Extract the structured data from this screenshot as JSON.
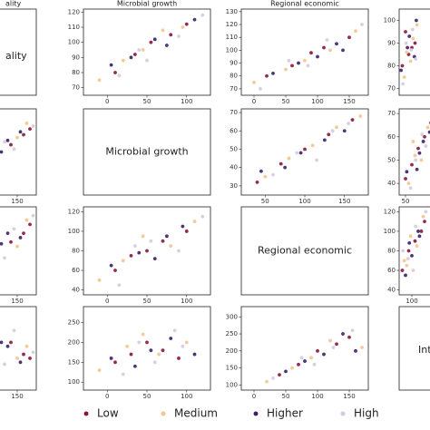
{
  "chart_data": [
    {
      "type": "label",
      "title": "ality",
      "text": "ality"
    },
    {
      "type": "scatter",
      "title": "Microbial growth",
      "xlim": [
        -30,
        130
      ],
      "ylim": [
        65,
        122
      ],
      "xticks": [
        0,
        50,
        100
      ],
      "yticks": [
        70,
        80,
        90,
        100,
        110,
        120
      ],
      "series": [
        {
          "name": "Low",
          "x": [
            10,
            35,
            55,
            80,
            100
          ],
          "values": [
            80,
            92,
            100,
            105,
            112
          ]
        },
        {
          "name": "Medium",
          "x": [
            -10,
            20,
            45,
            70,
            95
          ],
          "values": [
            75,
            88,
            95,
            108,
            110
          ]
        },
        {
          "name": "Higher",
          "x": [
            5,
            30,
            60,
            75,
            110
          ],
          "values": [
            85,
            90,
            102,
            98,
            115
          ]
        },
        {
          "name": "High",
          "x": [
            15,
            40,
            50,
            90,
            120
          ],
          "values": [
            78,
            95,
            88,
            104,
            118
          ]
        }
      ]
    },
    {
      "type": "scatter",
      "title": "Regional economic",
      "xlim": [
        -20,
        180
      ],
      "ylim": [
        65,
        132
      ],
      "xticks": [
        0,
        50,
        100,
        150
      ],
      "yticks": [
        70,
        80,
        90,
        100,
        110,
        120,
        130
      ],
      "series": [
        {
          "name": "Low",
          "x": [
            20,
            60,
            90,
            110,
            150
          ],
          "values": [
            80,
            88,
            98,
            102,
            110
          ]
        },
        {
          "name": "Medium",
          "x": [
            0,
            50,
            80,
            120,
            160
          ],
          "values": [
            75,
            85,
            92,
            100,
            115
          ]
        },
        {
          "name": "Higher",
          "x": [
            30,
            70,
            100,
            130,
            140
          ],
          "values": [
            82,
            90,
            95,
            105,
            100
          ]
        },
        {
          "name": "High",
          "x": [
            10,
            55,
            85,
            115,
            170
          ],
          "values": [
            70,
            92,
            88,
            108,
            120
          ]
        }
      ]
    },
    {
      "type": "scatter",
      "xlim": [
        0,
        200
      ],
      "ylim": [
        67,
        105
      ],
      "xticks": [],
      "yticks": [
        70,
        80,
        90,
        100
      ],
      "series": [
        {
          "name": "Low",
          "x": [
            5,
            15,
            25,
            10,
            20
          ],
          "values": [
            80,
            85,
            90,
            95,
            88
          ]
        },
        {
          "name": "Medium",
          "x": [
            8,
            18,
            22,
            12,
            28
          ],
          "values": [
            75,
            82,
            92,
            86,
            98
          ]
        },
        {
          "name": "Higher",
          "x": [
            3,
            13,
            24,
            16,
            27
          ],
          "values": [
            78,
            88,
            84,
            93,
            100
          ]
        },
        {
          "name": "High",
          "x": [
            6,
            11,
            21,
            26,
            19
          ],
          "values": [
            72,
            90,
            96,
            83,
            87
          ]
        }
      ]
    },
    {
      "type": "scatter",
      "xlim": [
        -20,
        180
      ],
      "ylim": [
        20,
        80
      ],
      "xticks": [
        150
      ],
      "yticks": [],
      "series": [
        {
          "name": "Low",
          "x": [
            80,
            110,
            140,
            160,
            170
          ],
          "values": [
            40,
            48,
            55,
            62,
            66
          ]
        },
        {
          "name": "Medium",
          "x": [
            90,
            120,
            150,
            165,
            100
          ],
          "values": [
            45,
            50,
            60,
            70,
            42
          ]
        },
        {
          "name": "Higher",
          "x": [
            85,
            115,
            135,
            155,
            125
          ],
          "values": [
            38,
            52,
            58,
            64,
            50
          ]
        },
        {
          "name": "High",
          "x": [
            95,
            105,
            145,
            175,
            130
          ],
          "values": [
            50,
            44,
            52,
            68,
            57
          ]
        }
      ]
    },
    {
      "type": "label",
      "text": "Microbial growth"
    },
    {
      "type": "scatter",
      "xlim": [
        20,
        180
      ],
      "ylim": [
        25,
        72
      ],
      "xticks": [
        50,
        100,
        150
      ],
      "yticks": [
        30,
        40,
        50,
        60,
        70
      ],
      "series": [
        {
          "name": "Low",
          "x": [
            40,
            70,
            100,
            130,
            160
          ],
          "values": [
            32,
            42,
            50,
            58,
            66
          ]
        },
        {
          "name": "Medium",
          "x": [
            50,
            80,
            110,
            140,
            170
          ],
          "values": [
            35,
            45,
            52,
            62,
            68
          ]
        },
        {
          "name": "Higher",
          "x": [
            45,
            75,
            95,
            125,
            150
          ],
          "values": [
            38,
            40,
            48,
            55,
            60
          ]
        },
        {
          "name": "High",
          "x": [
            60,
            90,
            115,
            135,
            155
          ],
          "values": [
            36,
            48,
            44,
            60,
            64
          ]
        }
      ]
    },
    {
      "type": "scatter",
      "xlim": [
        40,
        240
      ],
      "ylim": [
        35,
        72
      ],
      "xticks": [
        50
      ],
      "yticks": [
        40,
        50,
        60,
        70
      ],
      "series": [
        {
          "name": "Low",
          "x": [
            50,
            60,
            70,
            80,
            90
          ],
          "values": [
            42,
            48,
            55,
            60,
            66
          ]
        },
        {
          "name": "Medium",
          "x": [
            55,
            65,
            75,
            85,
            62
          ],
          "values": [
            40,
            52,
            50,
            64,
            58
          ]
        },
        {
          "name": "Higher",
          "x": [
            52,
            68,
            78,
            88,
            72
          ],
          "values": [
            45,
            46,
            58,
            62,
            53
          ]
        },
        {
          "name": "High",
          "x": [
            58,
            66,
            82,
            92,
            76
          ],
          "values": [
            38,
            50,
            56,
            68,
            61
          ]
        }
      ]
    },
    {
      "type": "scatter",
      "xlim": [
        -20,
        180
      ],
      "ylim": [
        30,
        130
      ],
      "xticks": [
        150
      ],
      "yticks": [],
      "series": [
        {
          "name": "Low",
          "x": [
            80,
            110,
            140,
            160,
            170
          ],
          "values": [
            60,
            80,
            90,
            100,
            110
          ]
        },
        {
          "name": "Medium",
          "x": [
            90,
            120,
            150,
            165,
            100
          ],
          "values": [
            70,
            95,
            85,
            115,
            65
          ]
        },
        {
          "name": "Higher",
          "x": [
            85,
            115,
            135,
            155,
            125
          ],
          "values": [
            55,
            75,
            100,
            95,
            88
          ]
        },
        {
          "name": "High",
          "x": [
            95,
            105,
            145,
            175,
            130
          ],
          "values": [
            80,
            60,
            105,
            120,
            72
          ]
        }
      ]
    },
    {
      "type": "scatter",
      "xlim": [
        -30,
        130
      ],
      "ylim": [
        35,
        125
      ],
      "xticks": [
        0,
        50,
        100
      ],
      "yticks": [
        40,
        60,
        80,
        100,
        120
      ],
      "series": [
        {
          "name": "Low",
          "x": [
            10,
            30,
            50,
            70,
            100
          ],
          "values": [
            60,
            75,
            80,
            90,
            100
          ]
        },
        {
          "name": "Medium",
          "x": [
            -10,
            20,
            45,
            80,
            110
          ],
          "values": [
            50,
            70,
            95,
            85,
            110
          ]
        },
        {
          "name": "Higher",
          "x": [
            5,
            40,
            60,
            75,
            95
          ],
          "values": [
            65,
            78,
            72,
            95,
            105
          ]
        },
        {
          "name": "High",
          "x": [
            15,
            35,
            55,
            90,
            120
          ],
          "values": [
            45,
            85,
            90,
            80,
            115
          ]
        }
      ]
    },
    {
      "type": "label",
      "text": "Regional economic"
    },
    {
      "type": "scatter",
      "xlim": [
        80,
        280
      ],
      "ylim": [
        35,
        125
      ],
      "xticks": [
        100
      ],
      "yticks": [
        40,
        60,
        80,
        100,
        120
      ],
      "series": [
        {
          "name": "Low",
          "x": [
            85,
            95,
            105,
            115,
            120
          ],
          "values": [
            60,
            80,
            90,
            100,
            110
          ]
        },
        {
          "name": "Medium",
          "x": [
            88,
            98,
            108,
            118,
            92
          ],
          "values": [
            70,
            95,
            85,
            115,
            65
          ]
        },
        {
          "name": "Higher",
          "x": [
            90,
            100,
            110,
            112,
            96
          ],
          "values": [
            55,
            75,
            100,
            95,
            88
          ]
        },
        {
          "name": "High",
          "x": [
            86,
            102,
            106,
            122,
            94
          ],
          "values": [
            80,
            60,
            105,
            120,
            72
          ]
        }
      ]
    },
    {
      "type": "scatter",
      "xlim": [
        -20,
        180
      ],
      "ylim": [
        80,
        290
      ],
      "xticks": [
        150
      ],
      "yticks": [],
      "series": [
        {
          "name": "Low",
          "x": [
            80,
            110,
            140,
            160,
            170
          ],
          "values": [
            150,
            180,
            200,
            170,
            160
          ]
        },
        {
          "name": "Medium",
          "x": [
            90,
            120,
            150,
            165,
            100
          ],
          "values": [
            130,
            210,
            160,
            190,
            220
          ]
        },
        {
          "name": "Higher",
          "x": [
            85,
            115,
            135,
            155,
            125
          ],
          "values": [
            170,
            140,
            190,
            150,
            200
          ]
        },
        {
          "name": "High",
          "x": [
            95,
            105,
            145,
            175,
            130
          ],
          "values": [
            120,
            190,
            230,
            175,
            145
          ]
        }
      ]
    },
    {
      "type": "scatter",
      "xlim": [
        -30,
        130
      ],
      "ylim": [
        80,
        290
      ],
      "xticks": [
        0,
        50,
        100
      ],
      "yticks": [
        100,
        150,
        200,
        250
      ],
      "series": [
        {
          "name": "Low",
          "x": [
            10,
            30,
            50,
            70,
            90
          ],
          "values": [
            150,
            170,
            200,
            180,
            160
          ]
        },
        {
          "name": "Medium",
          "x": [
            -10,
            25,
            45,
            65,
            100
          ],
          "values": [
            130,
            190,
            220,
            170,
            200
          ]
        },
        {
          "name": "Higher",
          "x": [
            5,
            35,
            55,
            80,
            110
          ],
          "values": [
            160,
            140,
            180,
            210,
            170
          ]
        },
        {
          "name": "High",
          "x": [
            20,
            40,
            60,
            85,
            95
          ],
          "values": [
            120,
            200,
            150,
            230,
            190
          ]
        }
      ]
    },
    {
      "type": "scatter",
      "xlim": [
        -20,
        180
      ],
      "ylim": [
        85,
        330
      ],
      "xticks": [
        0,
        50,
        100,
        150
      ],
      "yticks": [
        100,
        150,
        200,
        250,
        300
      ],
      "series": [
        {
          "name": "Low",
          "x": [
            40,
            70,
            100,
            130,
            150
          ],
          "values": [
            130,
            160,
            200,
            220,
            240
          ]
        },
        {
          "name": "Medium",
          "x": [
            20,
            60,
            90,
            120,
            170
          ],
          "values": [
            110,
            150,
            180,
            230,
            210
          ]
        },
        {
          "name": "Higher",
          "x": [
            50,
            80,
            110,
            140,
            160
          ],
          "values": [
            140,
            170,
            190,
            250,
            200
          ]
        },
        {
          "name": "High",
          "x": [
            30,
            75,
            95,
            125,
            155
          ],
          "values": [
            120,
            180,
            160,
            210,
            260
          ]
        }
      ]
    },
    {
      "type": "label",
      "text": "Int"
    }
  ],
  "legend": [
    {
      "name": "Low",
      "color": "#8b1538"
    },
    {
      "name": "Medium",
      "color": "#f2c48d"
    },
    {
      "name": "Higher",
      "color": "#3b1f6b"
    },
    {
      "name": "High",
      "color": "#d8c8e0"
    }
  ]
}
